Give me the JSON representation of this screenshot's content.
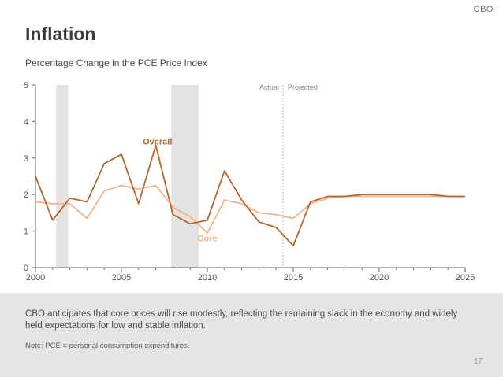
{
  "brand": "CBO",
  "page_number": "17",
  "footer": {
    "text": "CBO anticipates that core prices will rise modestly, reflecting the remaining slack in the economy and widely held expectations for low and stable inflation.",
    "note": "Note: PCE = personal consumption expenditures."
  },
  "colors": {
    "overall": "#b8652e",
    "core": "#f2b48a",
    "recession": "#e3e3e3",
    "axis": "#666666",
    "divider": "#bbbbbb"
  },
  "chart_data": {
    "type": "line",
    "title": "Inflation",
    "subtitle": "Percentage Change in the PCE Price Index",
    "xlim": [
      2000,
      2025
    ],
    "ylim": [
      0,
      5
    ],
    "x_ticks": [
      "2000",
      "2005",
      "2010",
      "2015",
      "2020",
      "2025"
    ],
    "y_ticks": [
      "0",
      "1",
      "2",
      "3",
      "4",
      "5"
    ],
    "divider": {
      "x": 2014.4,
      "left_label": "Actual",
      "right_label": "Projected"
    },
    "recessions": [
      [
        2001.2,
        2001.9
      ],
      [
        2007.9,
        2009.5
      ]
    ],
    "series": [
      {
        "name": "Overall",
        "x": [
          2000,
          2001,
          2002,
          2003,
          2004,
          2005,
          2006,
          2007,
          2008,
          2009,
          2010,
          2011,
          2012,
          2013,
          2014,
          2015,
          2016,
          2017,
          2018,
          2019,
          2020,
          2021,
          2022,
          2023,
          2024,
          2025
        ],
        "values": [
          2.5,
          1.3,
          1.9,
          1.8,
          2.85,
          3.1,
          1.75,
          3.35,
          1.45,
          1.2,
          1.3,
          2.65,
          1.85,
          1.25,
          1.1,
          0.6,
          1.8,
          1.95,
          1.95,
          2.0,
          2.0,
          2.0,
          2.0,
          2.0,
          1.95,
          1.95
        ]
      },
      {
        "name": "Core",
        "x": [
          2000,
          2001,
          2002,
          2003,
          2004,
          2005,
          2006,
          2007,
          2008,
          2009,
          2010,
          2011,
          2012,
          2013,
          2014,
          2015,
          2016,
          2017,
          2018,
          2019,
          2020,
          2021,
          2022,
          2023,
          2024,
          2025
        ],
        "values": [
          1.8,
          1.75,
          1.75,
          1.35,
          2.1,
          2.25,
          2.15,
          2.25,
          1.65,
          1.4,
          0.95,
          1.85,
          1.75,
          1.5,
          1.45,
          1.35,
          1.75,
          1.9,
          1.95,
          1.95,
          1.95,
          1.95,
          1.95,
          1.95,
          1.95,
          1.95
        ]
      }
    ]
  }
}
